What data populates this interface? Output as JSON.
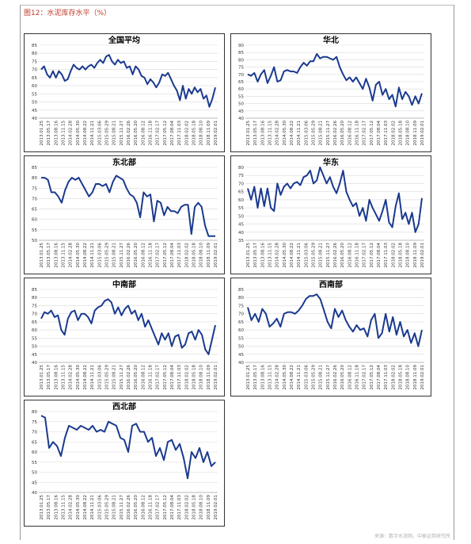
{
  "figure_title": "图12：水泥库存水平（%）",
  "source": "来源：数字水泥网，中泰证券研究所",
  "colors": {
    "series": "#1a3a8f",
    "title": "#c0392b"
  },
  "x_tick_labels": [
    "2013.01.25",
    "2013.05.17",
    "2013.08.16",
    "2013.11.15",
    "2014.02.28",
    "2014.05.30",
    "2014.08.22",
    "2014.11.21",
    "2015.03.06",
    "2015.05.29",
    "2015.08.21",
    "2015.11.27",
    "2016.02.26",
    "2016.05.20",
    "2016.08.12",
    "2016.11.18",
    "2017.02.17",
    "2017.05.12",
    "2017.08.04",
    "2017.11.03",
    "2018.02.02",
    "2018.05.18",
    "2018.08.10",
    "2018.11.09",
    "2019.02.01"
  ],
  "chart_data": [
    {
      "type": "line",
      "title": "全国平均",
      "ylim": [
        40,
        85
      ],
      "yticks": [
        40,
        45,
        50,
        55,
        60,
        65,
        70,
        75,
        80,
        85
      ],
      "grid": true,
      "series": [
        {
          "values": [
            70,
            72,
            67,
            65,
            69,
            65,
            69,
            67,
            63,
            64,
            69,
            73,
            71,
            70,
            72,
            70,
            72,
            73,
            71,
            74,
            76,
            74,
            78,
            79,
            75,
            73,
            76,
            74,
            75,
            71,
            72,
            67,
            72,
            70,
            66,
            65,
            61,
            64,
            62,
            59,
            62,
            67,
            66,
            68,
            64,
            60,
            57,
            51,
            60,
            52,
            58,
            55,
            59,
            56,
            58,
            52,
            54,
            47,
            52,
            59
          ]
        }
      ]
    },
    {
      "type": "line",
      "title": "华北",
      "ylim": [
        40,
        90
      ],
      "yticks": [
        40,
        45,
        50,
        55,
        60,
        65,
        70,
        75,
        80,
        85,
        90
      ],
      "grid": true,
      "series": [
        {
          "values": [
            70,
            69,
            71,
            65,
            70,
            73,
            64,
            69,
            75,
            65,
            66,
            72,
            73,
            72,
            72,
            71,
            75,
            78,
            76,
            79,
            79,
            84,
            81,
            82,
            82,
            81,
            80,
            82,
            75,
            70,
            66,
            68,
            65,
            68,
            64,
            60,
            67,
            61,
            52,
            63,
            65,
            56,
            60,
            53,
            56,
            48,
            61,
            53,
            58,
            55,
            49,
            55,
            50,
            57
          ]
        }
      ]
    },
    {
      "type": "line",
      "title": "东北部",
      "ylim": [
        50,
        85
      ],
      "yticks": [
        50,
        55,
        60,
        65,
        70,
        75,
        80,
        85
      ],
      "grid": true,
      "series": [
        {
          "values": [
            80,
            80,
            79,
            73,
            73,
            71,
            68,
            74,
            78,
            80,
            79,
            80,
            77,
            74,
            71,
            73,
            77,
            77,
            76,
            77,
            73,
            78,
            81,
            80,
            79,
            75,
            72,
            71,
            68,
            61,
            73,
            71,
            72,
            59,
            69,
            68,
            62,
            66,
            64,
            64,
            63,
            66,
            67,
            67,
            53,
            66,
            68,
            66,
            57,
            52,
            52,
            52
          ]
        }
      ]
    },
    {
      "type": "line",
      "title": "华东",
      "ylim": [
        35,
        80
      ],
      "yticks": [
        35,
        40,
        45,
        50,
        55,
        60,
        65,
        70,
        75,
        80
      ],
      "grid": true,
      "series": [
        {
          "values": [
            67,
            60,
            68,
            55,
            67,
            56,
            67,
            55,
            53,
            70,
            63,
            68,
            70,
            67,
            70,
            71,
            69,
            74,
            75,
            78,
            70,
            72,
            80,
            75,
            70,
            74,
            68,
            64,
            70,
            78,
            65,
            60,
            56,
            58,
            50,
            55,
            47,
            60,
            55,
            51,
            47,
            53,
            60,
            46,
            43,
            56,
            64,
            48,
            52,
            45,
            52,
            40,
            45,
            61
          ]
        }
      ]
    },
    {
      "type": "line",
      "title": "中南部",
      "ylim": [
        40,
        85
      ],
      "yticks": [
        40,
        45,
        50,
        55,
        60,
        65,
        70,
        75,
        80,
        85
      ],
      "grid": true,
      "series": [
        {
          "values": [
            67,
            71,
            70,
            72,
            68,
            69,
            60,
            57,
            67,
            71,
            72,
            66,
            70,
            70,
            68,
            64,
            72,
            74,
            75,
            78,
            79,
            77,
            70,
            74,
            69,
            73,
            75,
            70,
            72,
            66,
            70,
            62,
            66,
            61,
            56,
            51,
            58,
            54,
            58,
            50,
            56,
            57,
            49,
            51,
            58,
            59,
            54,
            60,
            57,
            48,
            45,
            54,
            63
          ]
        }
      ]
    },
    {
      "type": "line",
      "title": "西南部",
      "ylim": [
        40,
        85
      ],
      "yticks": [
        40,
        45,
        50,
        55,
        60,
        65,
        70,
        75,
        80,
        85
      ],
      "grid": true,
      "series": [
        {
          "values": [
            74,
            66,
            70,
            65,
            73,
            70,
            62,
            64,
            67,
            62,
            70,
            71,
            71,
            70,
            72,
            75,
            79,
            81,
            81,
            82,
            79,
            72,
            65,
            61,
            73,
            68,
            72,
            66,
            62,
            59,
            63,
            60,
            61,
            56,
            66,
            70,
            55,
            58,
            70,
            59,
            68,
            57,
            65,
            56,
            60,
            52,
            58,
            50,
            60
          ]
        }
      ]
    },
    {
      "type": "line",
      "title": "西北部",
      "ylim": [
        40,
        80
      ],
      "yticks": [
        40,
        45,
        50,
        55,
        60,
        65,
        70,
        75,
        80
      ],
      "grid": true,
      "series": [
        {
          "values": [
            78,
            77,
            62,
            65,
            63,
            58,
            67,
            73,
            72,
            71,
            73,
            72,
            71,
            73,
            70,
            71,
            70,
            75,
            74,
            73,
            67,
            66,
            60,
            73,
            74,
            70,
            70,
            65,
            67,
            58,
            62,
            56,
            65,
            66,
            61,
            64,
            57,
            47,
            60,
            57,
            62,
            55,
            60,
            53,
            55
          ]
        }
      ]
    }
  ]
}
